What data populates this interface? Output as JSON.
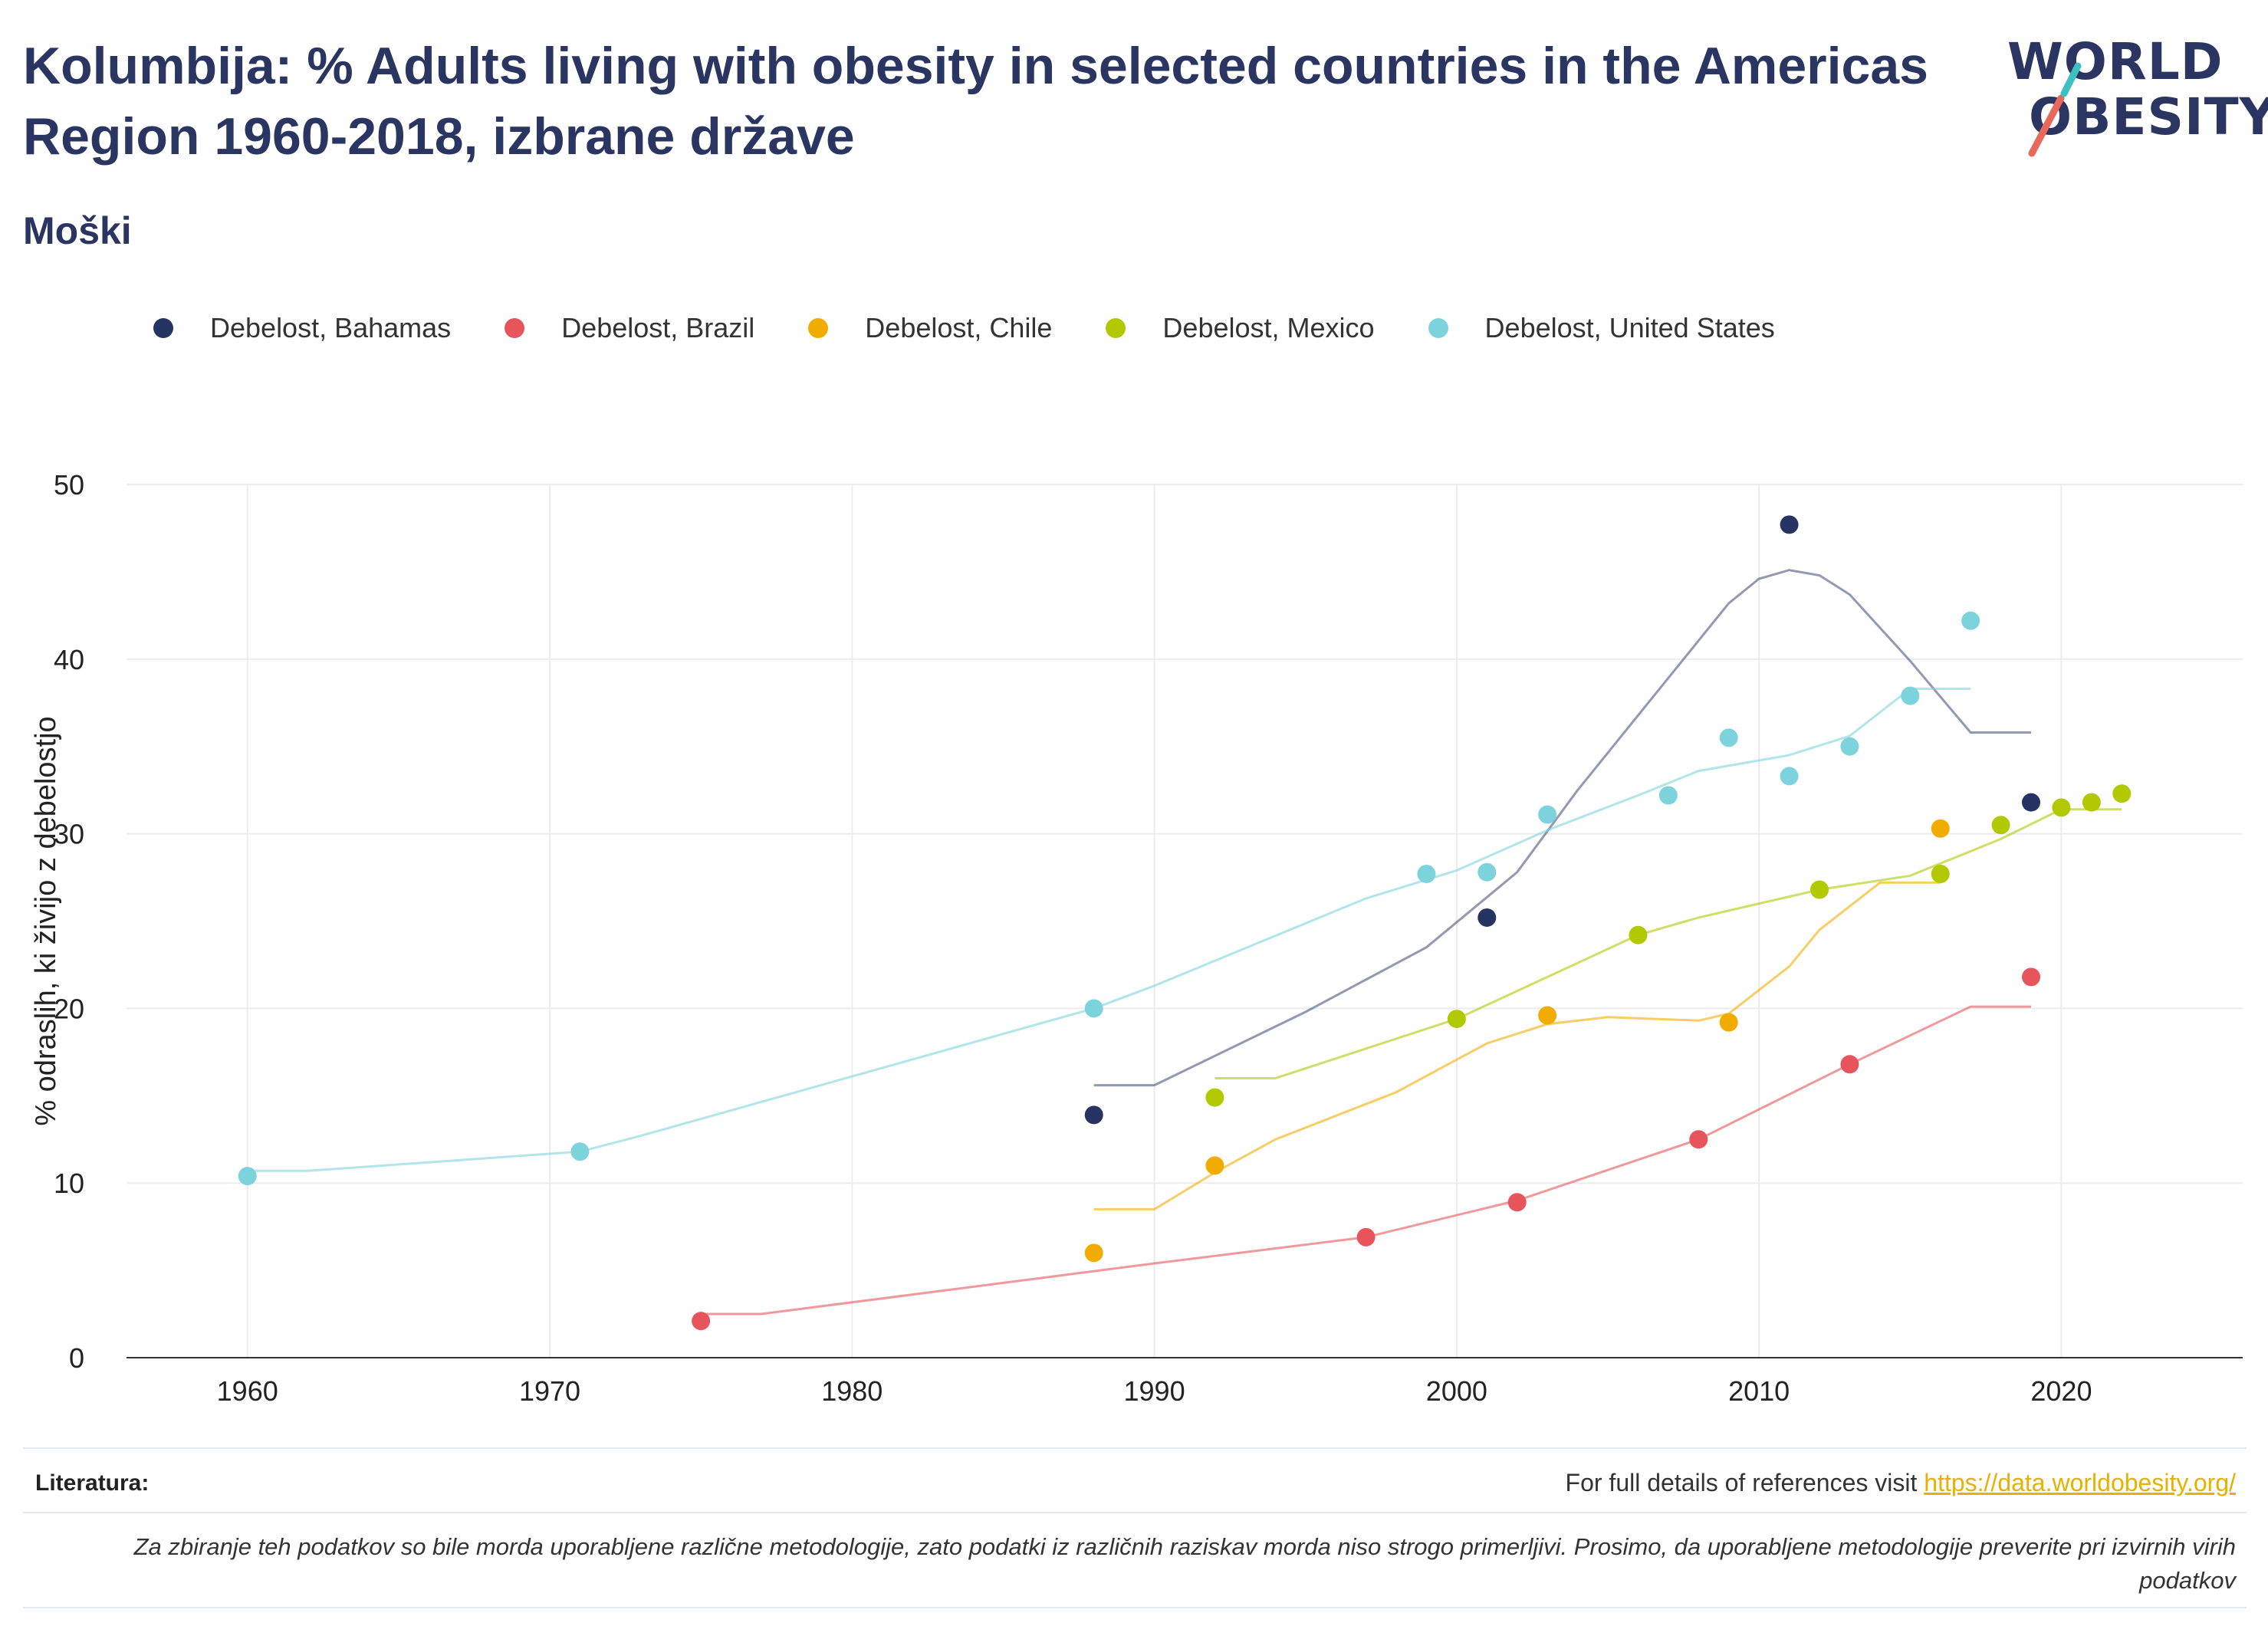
{
  "header": {
    "title": "Kolumbija: % Adults living with obesity in selected countries in the Americas Region 1960-2018, izbrane države",
    "subtitle": "Moški"
  },
  "logo": {
    "line1": "WORLD",
    "line2": "OBESITY"
  },
  "legend": [
    {
      "label": "Debelost, Bahamas",
      "color": "#263463"
    },
    {
      "label": "Debelost, Brazil",
      "color": "#e8545b"
    },
    {
      "label": "Debelost, Chile",
      "color": "#f2ac00"
    },
    {
      "label": "Debelost, Mexico",
      "color": "#b2c800"
    },
    {
      "label": "Debelost, United States",
      "color": "#7dd3dc"
    }
  ],
  "footer": {
    "ref_label": "Literatura:",
    "ref_text": "For full details of references visit ",
    "ref_link": "https://data.worldobesity.org/",
    "note": "Za zbiranje teh podatkov so bile morda uporabljene različne metodologije, zato podatki iz različnih raziskav morda niso strogo primerljivi. Prosimo, da uporabljene metodologije preverite pri izvirnih virih podatkov"
  },
  "chart_data": {
    "type": "scatter",
    "ylabel": "% odraslih, ki živijo z debelostjo",
    "xlabel": "",
    "xlim": [
      1956,
      2026
    ],
    "ylim": [
      0,
      50
    ],
    "x_ticks": [
      1960,
      1970,
      1980,
      1990,
      2000,
      2010,
      2020
    ],
    "y_ticks": [
      0,
      10,
      20,
      30,
      40,
      50
    ],
    "grid": true,
    "legend_position": "top",
    "series": [
      {
        "name": "Debelost, Bahamas",
        "color": "#263463",
        "points": [
          [
            1988,
            13.9
          ],
          [
            2001,
            25.2
          ],
          [
            2011,
            47.7
          ],
          [
            2019,
            31.8
          ]
        ],
        "trend": [
          [
            1988,
            15.6
          ],
          [
            1990,
            15.6
          ],
          [
            1995,
            19.8
          ],
          [
            1999,
            23.5
          ],
          [
            2002,
            27.8
          ],
          [
            2004,
            32.5
          ],
          [
            2009,
            43.2
          ],
          [
            2010,
            44.6
          ],
          [
            2011,
            45.1
          ],
          [
            2012,
            44.8
          ],
          [
            2013,
            43.7
          ],
          [
            2015,
            39.9
          ],
          [
            2017,
            35.8
          ],
          [
            2019,
            35.8
          ]
        ]
      },
      {
        "name": "Debelost, Brazil",
        "color": "#e8545b",
        "points": [
          [
            1975,
            2.1
          ],
          [
            1997,
            6.9
          ],
          [
            2002,
            8.9
          ],
          [
            2008,
            12.5
          ],
          [
            2013,
            16.8
          ],
          [
            2019,
            21.8
          ]
        ],
        "trend": [
          [
            1975,
            2.5
          ],
          [
            1977,
            2.5
          ],
          [
            1990,
            5.4
          ],
          [
            1997,
            6.9
          ],
          [
            2002,
            9.0
          ],
          [
            2008,
            12.5
          ],
          [
            2013,
            16.8
          ],
          [
            2017,
            20.1
          ],
          [
            2019,
            20.1
          ]
        ]
      },
      {
        "name": "Debelost, Chile",
        "color": "#f2ac00",
        "points": [
          [
            1988,
            6.0
          ],
          [
            1992,
            11.0
          ],
          [
            2003,
            19.6
          ],
          [
            2009,
            19.2
          ],
          [
            2016,
            30.3
          ]
        ],
        "trend": [
          [
            1988,
            8.5
          ],
          [
            1990,
            8.5
          ],
          [
            1992,
            10.6
          ],
          [
            1994,
            12.5
          ],
          [
            1998,
            15.2
          ],
          [
            2001,
            18.0
          ],
          [
            2003,
            19.1
          ],
          [
            2005,
            19.5
          ],
          [
            2008,
            19.3
          ],
          [
            2009,
            19.7
          ],
          [
            2011,
            22.4
          ],
          [
            2012,
            24.5
          ],
          [
            2014,
            27.2
          ],
          [
            2016,
            27.2
          ]
        ]
      },
      {
        "name": "Debelost, Mexico",
        "color": "#b2c800",
        "points": [
          [
            1992,
            14.9
          ],
          [
            2000,
            19.4
          ],
          [
            2006,
            24.2
          ],
          [
            2012,
            26.8
          ],
          [
            2016,
            27.7
          ],
          [
            2018,
            30.5
          ],
          [
            2020,
            31.5
          ],
          [
            2021,
            31.8
          ],
          [
            2022,
            32.3
          ]
        ],
        "trend": [
          [
            1992,
            16.0
          ],
          [
            1994,
            16.0
          ],
          [
            2000,
            19.4
          ],
          [
            2006,
            24.2
          ],
          [
            2008,
            25.2
          ],
          [
            2012,
            26.8
          ],
          [
            2015,
            27.6
          ],
          [
            2018,
            29.7
          ],
          [
            2020,
            31.4
          ],
          [
            2022,
            31.4
          ]
        ]
      },
      {
        "name": "Debelost, United States",
        "color": "#7dd3dc",
        "points": [
          [
            1960,
            10.4
          ],
          [
            1971,
            11.8
          ],
          [
            1988,
            20.0
          ],
          [
            1999,
            27.7
          ],
          [
            2001,
            27.8
          ],
          [
            2003,
            31.1
          ],
          [
            2007,
            32.2
          ],
          [
            2009,
            35.5
          ],
          [
            2011,
            33.3
          ],
          [
            2013,
            35.0
          ],
          [
            2015,
            37.9
          ],
          [
            2017,
            42.2
          ]
        ],
        "trend": [
          [
            1960,
            10.7
          ],
          [
            1962,
            10.7
          ],
          [
            1971,
            11.8
          ],
          [
            1973,
            12.7
          ],
          [
            1988,
            20.0
          ],
          [
            1990,
            21.3
          ],
          [
            1997,
            26.3
          ],
          [
            2000,
            27.9
          ],
          [
            2003,
            30.2
          ],
          [
            2006,
            32.2
          ],
          [
            2008,
            33.6
          ],
          [
            2011,
            34.5
          ],
          [
            2013,
            35.6
          ],
          [
            2015,
            38.3
          ],
          [
            2017,
            38.3
          ]
        ]
      }
    ]
  }
}
